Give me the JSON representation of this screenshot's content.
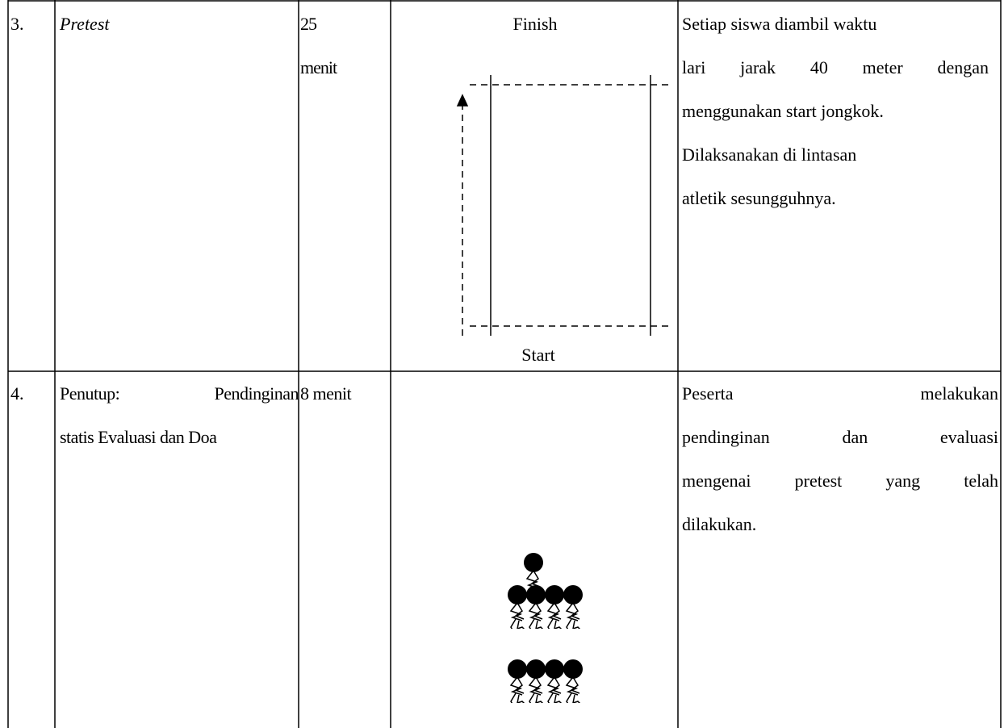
{
  "table": {
    "rows": [
      {
        "number": "3.",
        "activity": [
          "Pretest"
        ],
        "duration": [
          "25",
          "menit"
        ],
        "diagram": {
          "top_label": "Finish",
          "bottom_label": "Start"
        },
        "description": [
          "Setiap siswa diambil waktu",
          "lari jarak 40 meter dengan",
          "menggunakan start jongkok.",
          "Dilaksanakan di lintasan",
          "atletik sesungguhnya."
        ]
      },
      {
        "number": "4.",
        "activity": [
          "Penutup: Pendinginan",
          "statis Evaluasi dan Doa"
        ],
        "duration": [
          "8 menit"
        ],
        "description": [
          "Peserta melakukan",
          "pendinginan dan evaluasi",
          "mengenai pretest yang telah",
          "dilakukan."
        ]
      }
    ]
  }
}
